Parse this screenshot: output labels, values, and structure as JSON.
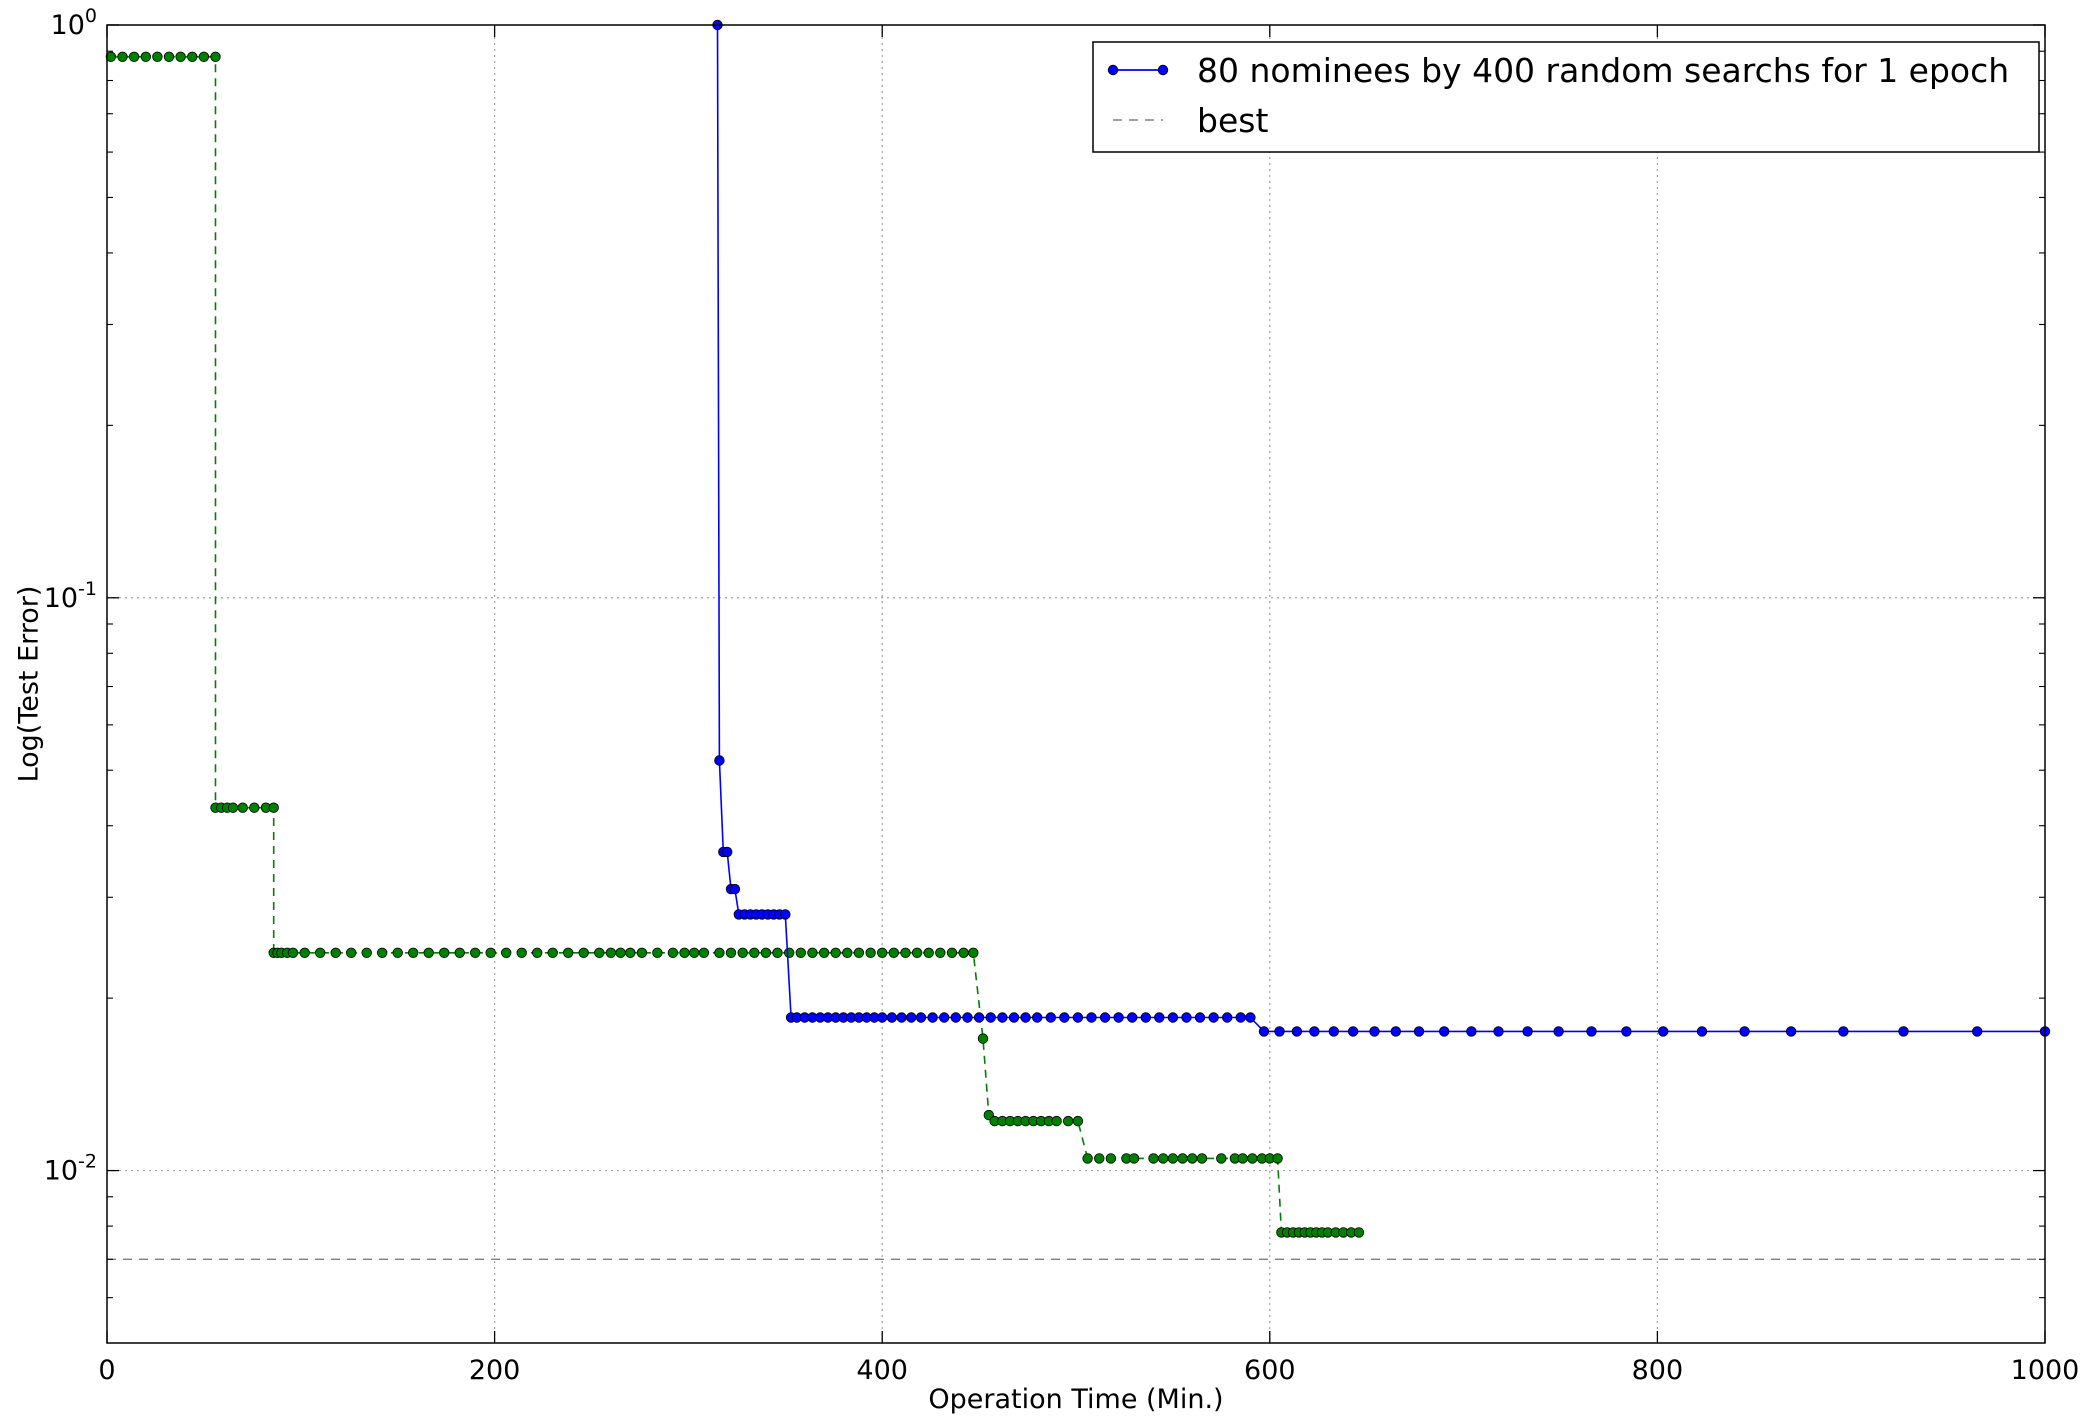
{
  "chart_data": {
    "type": "line",
    "xlabel": "Operation Time (Min.)",
    "ylabel": "Log(Test Error)",
    "xlim": [
      0,
      1000
    ],
    "ylim": [
      0.005,
      1.0
    ],
    "yscale": "log",
    "grid": true,
    "legend_position": "top-right",
    "x_ticks": [
      {
        "value": 0,
        "label": "0"
      },
      {
        "value": 200,
        "label": "200"
      },
      {
        "value": 400,
        "label": "400"
      },
      {
        "value": 600,
        "label": "600"
      },
      {
        "value": 800,
        "label": "800"
      },
      {
        "value": 1000,
        "label": "1000"
      }
    ],
    "y_ticks": [
      {
        "value": 1.0,
        "base": "10",
        "exp": "0"
      },
      {
        "value": 0.1,
        "base": "10",
        "exp": "-1"
      },
      {
        "value": 0.01,
        "base": "10",
        "exp": "-2"
      }
    ],
    "legend": [
      {
        "label": "80 nominees by 400 random searchs for 1 epoch",
        "color": "#0000ff",
        "style": "solid-marker"
      },
      {
        "label": "best",
        "color": "#808080",
        "style": "dashed"
      }
    ],
    "best_value": 0.007,
    "series": [
      {
        "name": "80 nominees by 400 random searchs for 1 epoch",
        "color": "#0000ff",
        "line_style": "solid",
        "x": [
          315,
          316,
          318,
          320,
          322,
          324,
          326,
          329,
          332,
          335,
          338,
          341,
          344,
          347,
          350,
          353,
          356,
          360,
          364,
          368,
          372,
          376,
          380,
          384,
          388,
          392,
          396,
          400,
          405,
          410,
          415,
          420,
          426,
          432,
          438,
          444,
          450,
          456,
          462,
          468,
          474,
          480,
          487,
          494,
          501,
          508,
          515,
          522,
          529,
          536,
          543,
          550,
          557,
          564,
          571,
          578,
          585,
          590,
          597,
          605,
          614,
          623,
          633,
          643,
          654,
          665,
          677,
          690,
          704,
          718,
          733,
          749,
          766,
          784,
          803,
          823,
          845,
          869,
          896,
          927,
          965,
          1000
        ],
        "y": [
          1.0,
          0.052,
          0.036,
          0.036,
          0.031,
          0.031,
          0.028,
          0.028,
          0.028,
          0.028,
          0.028,
          0.028,
          0.028,
          0.028,
          0.028,
          0.0185,
          0.0185,
          0.0185,
          0.0185,
          0.0185,
          0.0185,
          0.0185,
          0.0185,
          0.0185,
          0.0185,
          0.0185,
          0.0185,
          0.0185,
          0.0185,
          0.0185,
          0.0185,
          0.0185,
          0.0185,
          0.0185,
          0.0185,
          0.0185,
          0.0185,
          0.0185,
          0.0185,
          0.0185,
          0.0185,
          0.0185,
          0.0185,
          0.0185,
          0.0185,
          0.0185,
          0.0185,
          0.0185,
          0.0185,
          0.0185,
          0.0185,
          0.0185,
          0.0185,
          0.0185,
          0.0185,
          0.0185,
          0.0185,
          0.0185,
          0.0175,
          0.0175,
          0.0175,
          0.0175,
          0.0175,
          0.0175,
          0.0175,
          0.0175,
          0.0175,
          0.0175,
          0.0175,
          0.0175,
          0.0175,
          0.0175,
          0.0175,
          0.0175,
          0.0175,
          0.0175,
          0.0175,
          0.0175,
          0.0175,
          0.0175,
          0.0175,
          0.0175
        ]
      },
      {
        "name": "",
        "color": "#008000",
        "line_style": "dashed",
        "x": [
          2,
          8,
          14,
          20,
          26,
          32,
          38,
          44,
          50,
          56,
          56,
          59,
          62,
          65,
          70,
          76,
          82,
          86,
          86,
          88,
          90,
          93,
          96,
          102,
          110,
          118,
          126,
          134,
          142,
          150,
          158,
          166,
          174,
          182,
          190,
          198,
          206,
          214,
          222,
          230,
          238,
          246,
          254,
          260,
          265,
          270,
          276,
          284,
          292,
          298,
          303,
          308,
          316,
          322,
          328,
          334,
          340,
          346,
          352,
          358,
          364,
          370,
          376,
          382,
          388,
          394,
          400,
          406,
          412,
          418,
          424,
          430,
          436,
          442,
          447,
          452,
          455,
          458,
          462,
          466,
          470,
          474,
          478,
          482,
          486,
          490,
          496,
          501,
          506,
          512,
          518,
          526,
          530,
          540,
          545,
          550,
          555,
          560,
          565,
          575,
          582,
          586,
          591,
          596,
          600,
          604,
          606,
          609,
          612,
          615,
          618,
          621,
          624,
          627,
          630,
          634,
          638,
          642,
          646
        ],
        "y": [
          0.88,
          0.88,
          0.88,
          0.88,
          0.88,
          0.88,
          0.88,
          0.88,
          0.88,
          0.88,
          0.043,
          0.043,
          0.043,
          0.043,
          0.043,
          0.043,
          0.043,
          0.043,
          0.024,
          0.024,
          0.024,
          0.024,
          0.024,
          0.024,
          0.024,
          0.024,
          0.024,
          0.024,
          0.024,
          0.024,
          0.024,
          0.024,
          0.024,
          0.024,
          0.024,
          0.024,
          0.024,
          0.024,
          0.024,
          0.024,
          0.024,
          0.024,
          0.024,
          0.024,
          0.024,
          0.024,
          0.024,
          0.024,
          0.024,
          0.024,
          0.024,
          0.024,
          0.024,
          0.024,
          0.024,
          0.024,
          0.024,
          0.024,
          0.024,
          0.024,
          0.024,
          0.024,
          0.024,
          0.024,
          0.024,
          0.024,
          0.024,
          0.024,
          0.024,
          0.024,
          0.024,
          0.024,
          0.024,
          0.024,
          0.024,
          0.017,
          0.0125,
          0.0122,
          0.0122,
          0.0122,
          0.0122,
          0.0122,
          0.0122,
          0.0122,
          0.0122,
          0.0122,
          0.0122,
          0.0122,
          0.0105,
          0.0105,
          0.0105,
          0.0105,
          0.0105,
          0.0105,
          0.0105,
          0.0105,
          0.0105,
          0.0105,
          0.0105,
          0.0105,
          0.0105,
          0.0105,
          0.0105,
          0.0105,
          0.0105,
          0.0105,
          0.0078,
          0.0078,
          0.0078,
          0.0078,
          0.0078,
          0.0078,
          0.0078,
          0.0078,
          0.0078,
          0.0078,
          0.0078,
          0.0078,
          0.0078
        ]
      }
    ]
  }
}
